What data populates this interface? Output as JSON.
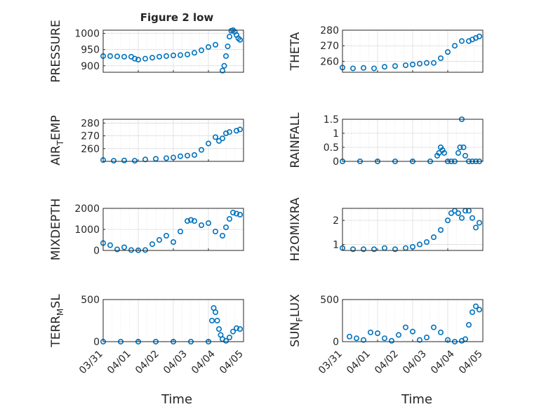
{
  "figure": {
    "title": "Figure 2 low",
    "xlabel": "Time",
    "x_tick_labels": [
      "03/31",
      "04/01",
      "04/02",
      "04/03",
      "04/04",
      "04/05"
    ]
  },
  "style": {
    "marker_color": "#0072BD",
    "axis_color": "#262626",
    "grid_color": "#dcdcdc"
  },
  "chart_data": [
    {
      "type": "scatter",
      "ylabel": "PRESSURE",
      "x_unit": "days since 03/31",
      "xlim": [
        0,
        4
      ],
      "ylim": [
        880,
        1010
      ],
      "yticks": [
        900,
        950,
        1000
      ],
      "grid": true,
      "series": [
        {
          "x": [
            0.0,
            0.2,
            0.4,
            0.6,
            0.8,
            0.9,
            1.0,
            1.2,
            1.4,
            1.6,
            1.8,
            2.0,
            2.2,
            2.4,
            2.6,
            2.8,
            3.0,
            3.2,
            3.4,
            3.45,
            3.5,
            3.55,
            3.6,
            3.65,
            3.7,
            3.75,
            3.8,
            3.85,
            3.9
          ],
          "y": [
            930,
            930,
            929,
            928,
            928,
            922,
            919,
            922,
            925,
            928,
            930,
            932,
            933,
            935,
            940,
            948,
            958,
            965,
            885,
            900,
            930,
            960,
            990,
            1008,
            1010,
            1005,
            995,
            985,
            980
          ]
        }
      ]
    },
    {
      "type": "scatter",
      "ylabel": "THETA",
      "x_unit": "days since 03/31",
      "xlim": [
        0,
        4
      ],
      "ylim": [
        253,
        280
      ],
      "yticks": [
        260,
        270,
        280
      ],
      "grid": true,
      "series": [
        {
          "x": [
            0.0,
            0.3,
            0.6,
            0.9,
            1.2,
            1.5,
            1.8,
            2.0,
            2.2,
            2.4,
            2.6,
            2.8,
            3.0,
            3.2,
            3.4,
            3.6,
            3.7,
            3.8,
            3.9
          ],
          "y": [
            256,
            255.5,
            255.8,
            255.5,
            256.5,
            257,
            257.5,
            258,
            258.5,
            259,
            259,
            262,
            266,
            270,
            273,
            273,
            274,
            275,
            276
          ]
        }
      ]
    },
    {
      "type": "scatter",
      "ylabel": "AIR_TEMP",
      "x_unit": "days since 03/31",
      "xlim": [
        0,
        4
      ],
      "ylim": [
        250,
        283
      ],
      "yticks": [
        260,
        270,
        280
      ],
      "grid": true,
      "series": [
        {
          "x": [
            0.0,
            0.3,
            0.6,
            0.9,
            1.2,
            1.5,
            1.8,
            2.0,
            2.2,
            2.4,
            2.6,
            2.8,
            3.0,
            3.2,
            3.3,
            3.4,
            3.5,
            3.6,
            3.8,
            3.9
          ],
          "y": [
            251,
            250.5,
            250.7,
            250.5,
            251.5,
            252,
            252.5,
            253,
            254,
            254.5,
            255,
            259,
            264,
            269,
            266,
            268,
            272,
            273,
            274,
            275
          ]
        }
      ]
    },
    {
      "type": "scatter",
      "ylabel": "RAINFALL",
      "x_unit": "days since 03/31",
      "xlim": [
        0,
        4
      ],
      "ylim": [
        0,
        1.5
      ],
      "yticks": [
        0,
        0.5,
        1,
        1.5
      ],
      "grid": true,
      "series": [
        {
          "x": [
            0.0,
            0.5,
            1.0,
            1.5,
            2.0,
            2.5,
            2.7,
            2.75,
            2.8,
            2.85,
            2.9,
            3.0,
            3.1,
            3.2,
            3.3,
            3.35,
            3.4,
            3.45,
            3.5,
            3.6,
            3.7,
            3.8,
            3.9
          ],
          "y": [
            0,
            0,
            0,
            0,
            0,
            0,
            0.2,
            0.3,
            0.5,
            0.4,
            0.3,
            0,
            0,
            0,
            0.3,
            0.5,
            1.5,
            0.5,
            0.2,
            0,
            0,
            0,
            0
          ]
        }
      ]
    },
    {
      "type": "scatter",
      "ylabel": "MIXDEPTH",
      "x_unit": "days since 03/31",
      "xlim": [
        0,
        4
      ],
      "ylim": [
        0,
        2000
      ],
      "yticks": [
        0,
        1000,
        2000
      ],
      "grid": true,
      "series": [
        {
          "x": [
            0.0,
            0.2,
            0.4,
            0.6,
            0.8,
            1.0,
            1.2,
            1.4,
            1.6,
            1.8,
            2.0,
            2.2,
            2.4,
            2.5,
            2.6,
            2.8,
            3.0,
            3.2,
            3.4,
            3.5,
            3.6,
            3.7,
            3.8,
            3.9
          ],
          "y": [
            350,
            250,
            50,
            150,
            20,
            10,
            20,
            300,
            500,
            700,
            400,
            900,
            1400,
            1450,
            1400,
            1200,
            1300,
            900,
            700,
            1100,
            1500,
            1800,
            1750,
            1700
          ]
        }
      ]
    },
    {
      "type": "scatter",
      "ylabel": "H2OMIXRA",
      "x_unit": "days since 03/31",
      "xlim": [
        0,
        4
      ],
      "ylim": [
        0.75,
        2.5
      ],
      "yticks": [
        1,
        2
      ],
      "grid": true,
      "series": [
        {
          "x": [
            0.0,
            0.3,
            0.6,
            0.9,
            1.2,
            1.5,
            1.8,
            2.0,
            2.2,
            2.4,
            2.6,
            2.8,
            3.0,
            3.1,
            3.2,
            3.3,
            3.4,
            3.5,
            3.6,
            3.7,
            3.8,
            3.9
          ],
          "y": [
            0.85,
            0.8,
            0.8,
            0.8,
            0.85,
            0.8,
            0.85,
            0.9,
            1.0,
            1.1,
            1.3,
            1.6,
            2.0,
            2.3,
            2.4,
            2.3,
            2.1,
            2.4,
            2.4,
            2.1,
            1.7,
            1.9
          ]
        }
      ]
    },
    {
      "type": "scatter",
      "ylabel": "TERR_MSL",
      "x_unit": "days since 03/31",
      "xlim": [
        0,
        4
      ],
      "ylim": [
        0,
        500
      ],
      "yticks": [
        0,
        500
      ],
      "grid": true,
      "series": [
        {
          "x": [
            0.0,
            0.5,
            1.0,
            1.5,
            2.0,
            2.5,
            3.0,
            3.1,
            3.15,
            3.2,
            3.25,
            3.3,
            3.35,
            3.4,
            3.5,
            3.6,
            3.7,
            3.8,
            3.9
          ],
          "y": [
            0,
            0,
            0,
            0,
            0,
            0,
            0,
            250,
            400,
            350,
            250,
            150,
            80,
            30,
            10,
            50,
            120,
            160,
            150
          ]
        }
      ]
    },
    {
      "type": "scatter",
      "ylabel": "SUN_FLUX",
      "x_unit": "days since 03/31",
      "xlim": [
        0,
        4
      ],
      "ylim": [
        0,
        500
      ],
      "yticks": [
        0,
        500
      ],
      "grid": true,
      "series": [
        {
          "x": [
            0.2,
            0.4,
            0.6,
            0.8,
            1.0,
            1.2,
            1.4,
            1.6,
            1.8,
            2.0,
            2.2,
            2.4,
            2.6,
            2.8,
            3.0,
            3.2,
            3.4,
            3.5,
            3.6,
            3.7,
            3.8,
            3.9
          ],
          "y": [
            60,
            40,
            20,
            110,
            100,
            40,
            10,
            80,
            170,
            120,
            20,
            50,
            170,
            110,
            20,
            0,
            10,
            30,
            200,
            350,
            420,
            380
          ]
        }
      ]
    }
  ]
}
